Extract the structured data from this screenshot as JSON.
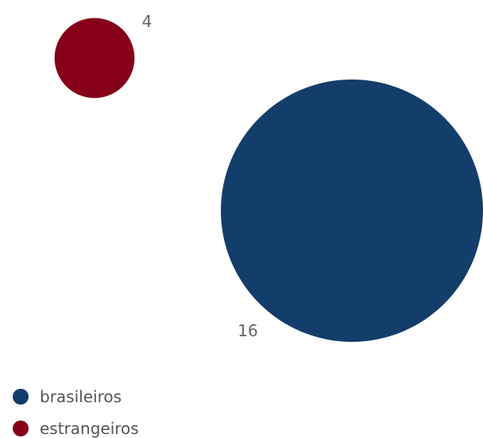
{
  "chart_data": {
    "type": "bubble",
    "series": [
      {
        "name": "brasileiros",
        "value": 16,
        "color": "#133d6b"
      },
      {
        "name": "estrangeiros",
        "value": 4,
        "color": "#850018"
      }
    ],
    "legend": {
      "position": "bottom-left",
      "items": [
        "brasileiros",
        "estrangeiros"
      ]
    }
  }
}
